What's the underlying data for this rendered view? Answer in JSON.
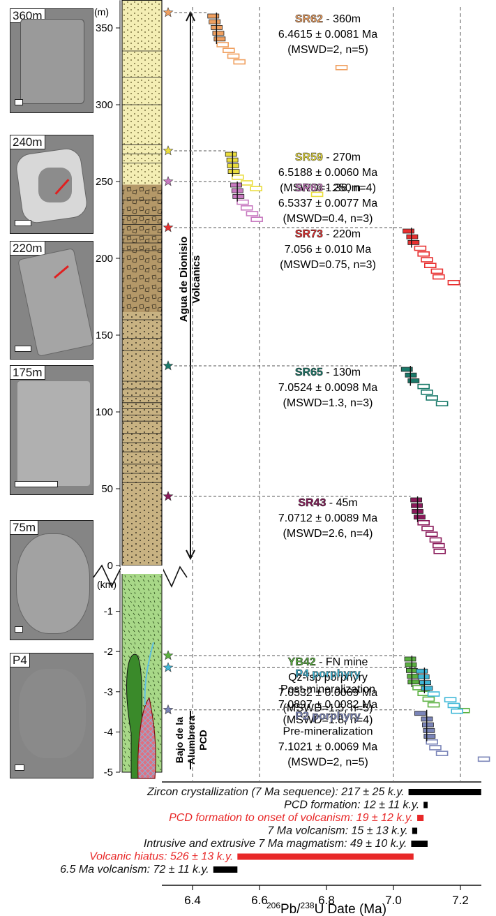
{
  "photos": [
    {
      "label": "360m"
    },
    {
      "label": "240m"
    },
    {
      "label": "220m"
    },
    {
      "label": "175m"
    },
    {
      "label": "75m"
    },
    {
      "label": "P4"
    }
  ],
  "column": {
    "upper_unit": "(m)",
    "upper_ticks": [
      "350",
      "300",
      "250",
      "200",
      "150",
      "100",
      "50",
      "0"
    ],
    "lower_unit": "(km)",
    "lower_ticks": [
      "-1",
      "-2",
      "-3",
      "-4",
      "-5"
    ],
    "units": [
      {
        "name": "Agua de Dionisio Volcanics",
        "lines": [
          "Agua de Dionisio",
          "Volcanics"
        ]
      },
      {
        "name": "Bajo de la Alumbrera PCD",
        "lines": [
          "Bajo de la",
          "Alumbrera",
          "PCD"
        ]
      }
    ]
  },
  "chart_data": {
    "type": "scatter",
    "xlabel": "206Pb/238U Date (Ma)",
    "xlabel_sup": "206",
    "xlabel_mid": "Pb/",
    "xlabel_sup2": "238",
    "xlabel_rest": "U Date (Ma)",
    "xlim": [
      6.36,
      7.3
    ],
    "xticks": [
      "6.4",
      "6.6",
      "6.8",
      "7.0",
      "7.2"
    ],
    "gridlines_x": [
      6.4,
      6.6,
      7.0,
      7.2
    ],
    "samples": [
      {
        "name": "SR62",
        "suffix": " - 360m",
        "lines": [
          "6.4615 ± 0.0081 Ma",
          "(MSWD=2, n=5)"
        ],
        "color": "#f0a060",
        "level_m": 360,
        "dates": [
          6.462,
          6.466,
          6.472,
          6.477,
          6.481,
          6.49,
          6.508,
          6.522,
          6.54,
          6.845
        ],
        "n_used": 5
      },
      {
        "name": "SR59",
        "suffix": " - 270m",
        "lines": [
          "6.5188 ± 0.0060 Ma",
          "(MSWD=1.36, n=4)"
        ],
        "color": "#eadd3c",
        "level_m": 270,
        "dates": [
          6.515,
          6.519,
          6.521,
          6.523,
          6.535,
          6.562,
          6.59,
          6.772
        ],
        "n_used": 4
      },
      {
        "name": "SR63",
        "suffix": " - 250m",
        "lines": [
          "6.5337 ± 0.0077 Ma",
          "(MSWD=0.4, n=3)"
        ],
        "color": "#c87ac0",
        "level_m": 250,
        "dates": [
          6.53,
          6.534,
          6.537,
          6.55,
          6.562,
          6.578,
          6.592
        ],
        "n_used": 3
      },
      {
        "name": "SR73",
        "suffix": " - 220m",
        "lines": [
          "7.056 ± 0.010 Ma",
          "(MSWD=0.75, n=3)"
        ],
        "color": "#e83030",
        "level_m": 220,
        "dates": [
          7.045,
          7.056,
          7.06,
          7.08,
          7.09,
          7.1,
          7.11,
          7.13,
          7.135,
          7.18
        ],
        "n_used": 3
      },
      {
        "name": "SR65",
        "suffix": " - 130m",
        "lines": [
          "7.0524 ± 0.0098 Ma",
          "(MSWD=1.3, n=3)"
        ],
        "color": "#1a7a6a",
        "level_m": 130,
        "dates": [
          7.04,
          7.052,
          7.06,
          7.09,
          7.1,
          7.115,
          7.145
        ],
        "n_used": 3
      },
      {
        "name": "SR43",
        "suffix": " - 45m",
        "lines": [
          "7.0712 ± 0.0089 Ma",
          "(MSWD=2.6, n=4)"
        ],
        "color": "#8a1a5a",
        "level_m": 45,
        "dates": [
          7.068,
          7.07,
          7.072,
          7.078,
          7.09,
          7.102,
          7.114,
          7.126,
          7.135,
          7.138
        ],
        "n_used": 4
      },
      {
        "name": "YB42",
        "suffix": " - FN mine",
        "lines": [
          "Qz-fsp porphyry",
          "7.0532 ± 0.0069 Ma",
          "(MSWD=1.5, n=5)"
        ],
        "color": "#5ab040",
        "level_km": -2.1,
        "dates": [
          7.05,
          7.052,
          7.055,
          7.058,
          7.06,
          7.075,
          7.09,
          7.105,
          7.12,
          7.21
        ],
        "n_used": 5
      },
      {
        "name": "P4 porphyry",
        "suffix": "",
        "lines": [
          "Post-mineralization",
          "7.0897 ± 0.0082 Ma",
          "(MSWD=1.8, n=4)"
        ],
        "color": "#40b8d8",
        "level_km": -2.4,
        "dates": [
          7.085,
          7.09,
          7.095,
          7.1,
          7.12,
          7.17,
          7.18,
          7.19
        ],
        "n_used": 4
      },
      {
        "name": "P2 porphyry",
        "suffix": "",
        "lines": [
          "Pre-mineralization",
          "7.1021 ± 0.0069 Ma",
          "(MSWD=2, n=5)"
        ],
        "color": "#7a84b8",
        "level_km": -3.45,
        "dates": [
          7.08,
          7.1,
          7.103,
          7.106,
          7.108,
          7.115,
          7.125,
          7.145,
          7.27
        ],
        "n_used": 5
      }
    ],
    "durations": [
      {
        "label": "Zircon crystallization (7 Ma sequence): 217 ± 25 k.y.",
        "start": 7.045,
        "end": 7.262,
        "color": "#000000",
        "red": false
      },
      {
        "label": "PCD formation: 12 ± 11 k.y.",
        "start": 7.09,
        "end": 7.102,
        "color": "#000000",
        "red": false
      },
      {
        "label": "PCD formation to onset of volcanism: 19 ± 12 k.y.",
        "start": 7.071,
        "end": 7.09,
        "color": "#e82828",
        "red": true
      },
      {
        "label": "7 Ma volcanism: 15 ± 13 k.y.",
        "start": 7.056,
        "end": 7.071,
        "color": "#000000",
        "red": false
      },
      {
        "label": "Intrusive and extrusive 7 Ma magmatism: 49 ± 10 k.y.",
        "start": 7.053,
        "end": 7.102,
        "color": "#000000",
        "red": false
      },
      {
        "label": "Volcanic hiatus: 526 ± 13 k.y.",
        "start": 6.534,
        "end": 7.06,
        "color": "#e82828",
        "red": true
      },
      {
        "label": "6.5 Ma volcanism: 72 ± 11 k.y.",
        "start": 6.462,
        "end": 6.534,
        "color": "#000000",
        "red": false
      }
    ]
  }
}
